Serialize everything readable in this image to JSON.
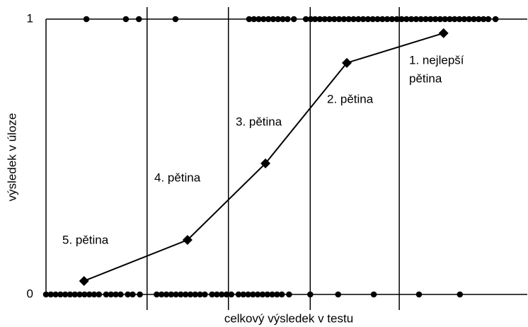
{
  "chart_data": {
    "type": "line",
    "x_label": "celkový výsledek v testu",
    "y_label": "výsledek v úloze",
    "xlim": [
      0,
      100
    ],
    "ylim": [
      0,
      1
    ],
    "yticks": [
      0,
      1
    ],
    "grid": true,
    "color": "#000000",
    "boundaries": [
      21.0,
      37.9,
      54.9,
      73.4
    ],
    "line": {
      "x": [
        7.9,
        29.4,
        45.6,
        62.5,
        82.6
      ],
      "y": [
        0.049,
        0.198,
        0.476,
        0.841,
        0.949
      ]
    },
    "annotations": [
      [
        "5. pětina"
      ],
      [
        "4. pětina"
      ],
      [
        "3. pětina"
      ],
      [
        "2. pětina"
      ],
      [
        "1. nejlepší",
        "pětina"
      ]
    ],
    "points": {
      "x": [
        8.4,
        16.6,
        19.3,
        26.9,
        42.2,
        43.2,
        44.2,
        45.2,
        46.2,
        47.2,
        48.2,
        49.2,
        50.2,
        51.5,
        54.0,
        55.0,
        55.9,
        56.9,
        57.9,
        58.9,
        59.9,
        60.9,
        61.9,
        62.9,
        63.9,
        64.9,
        65.9,
        66.9,
        67.9,
        68.9,
        69.9,
        70.9,
        71.9,
        72.9,
        73.9,
        74.9,
        75.9,
        76.9,
        77.9,
        78.9,
        79.9,
        80.9,
        81.9,
        82.9,
        83.9,
        84.9,
        85.9,
        86.9,
        87.9,
        88.9,
        89.9,
        90.9,
        91.9,
        93.4,
        0,
        1,
        2,
        3,
        4,
        5,
        6,
        7,
        8,
        9,
        10,
        11,
        12.5,
        13.5,
        14.5,
        15.5,
        17,
        18,
        19.5,
        23,
        24,
        25,
        26,
        27,
        28,
        29,
        30,
        31,
        32,
        33,
        34.5,
        35.5,
        36.5,
        37.5,
        38.5,
        40,
        41,
        42,
        43,
        44,
        45,
        46,
        47,
        48,
        49,
        50.5,
        54.9,
        60.7,
        68.1,
        77.5,
        86
      ],
      "y": [
        1,
        1,
        1,
        1,
        1,
        1,
        1,
        1,
        1,
        1,
        1,
        1,
        1,
        1,
        1,
        1,
        1,
        1,
        1,
        1,
        1,
        1,
        1,
        1,
        1,
        1,
        1,
        1,
        1,
        1,
        1,
        1,
        1,
        1,
        1,
        1,
        1,
        1,
        1,
        1,
        1,
        1,
        1,
        1,
        1,
        1,
        1,
        1,
        1,
        1,
        1,
        1,
        1,
        1,
        0,
        0,
        0,
        0,
        0,
        0,
        0,
        0,
        0,
        0,
        0,
        0,
        0,
        0,
        0,
        0,
        0,
        0,
        0,
        0,
        0,
        0,
        0,
        0,
        0,
        0,
        0,
        0,
        0,
        0,
        0,
        0,
        0,
        0,
        0,
        0,
        0,
        0,
        0,
        0,
        0,
        0,
        0,
        0,
        0,
        0,
        0,
        0,
        0,
        0,
        0
      ]
    }
  }
}
